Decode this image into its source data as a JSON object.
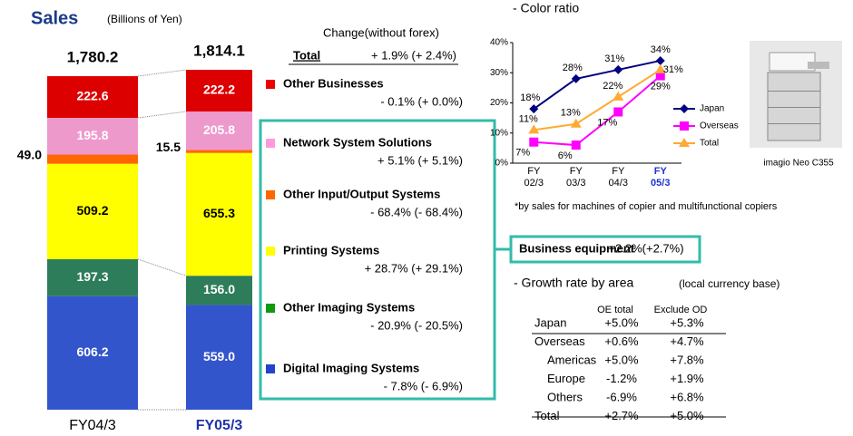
{
  "title": "Sales",
  "subtitle": "(Billions of Yen)",
  "chart_data": [
    {
      "type": "stacked-bar",
      "categories": [
        "FY04/3",
        "FY05/3"
      ],
      "highlight_index": 1,
      "totals": [
        1780.2,
        1814.1
      ],
      "total_labels": [
        "1,780.2",
        "1,814.1"
      ],
      "series": [
        {
          "name": "Digital Imaging Systems",
          "color": "#3355cc",
          "legend_color": "#2244cc",
          "label_color": "#ffffff",
          "values": [
            606.2,
            559.0
          ],
          "value_labels": [
            "606.2",
            "559.0"
          ],
          "change": "- 7.8% (- 6.9%)"
        },
        {
          "name": "Other Imaging Systems",
          "color": "#2e7d5a",
          "legend_color": "#119911",
          "label_color": "#ffffff",
          "values": [
            197.3,
            156.0
          ],
          "value_labels": [
            "197.3",
            "156.0"
          ],
          "change": "- 20.9% (- 20.5%)"
        },
        {
          "name": "Printing Systems",
          "color": "#ffff00",
          "legend_color": "#ffff00",
          "label_color": "#000000",
          "values": [
            509.2,
            655.3
          ],
          "value_labels": [
            "509.2",
            "655.3"
          ],
          "change": "+ 28.7% (+ 29.1%)"
        },
        {
          "name": "Other Input/Output Systems",
          "color": "#ff6600",
          "legend_color": "#ff6600",
          "label_color": "#000000",
          "values": [
            49.0,
            15.5
          ],
          "value_labels": [
            "49.0",
            "15.5"
          ],
          "change": "- 68.4% (- 68.4%)"
        },
        {
          "name": "Network System Solutions",
          "color": "#ee99cc",
          "legend_color": "#ff99dd",
          "label_color": "#ffffff",
          "values": [
            195.8,
            205.8
          ],
          "value_labels": [
            "195.8",
            "205.8"
          ],
          "change": "+ 5.1% (+ 5.1%)"
        },
        {
          "name": "Other Businesses",
          "color": "#dd0000",
          "legend_color": "#ee0000",
          "label_color": "#ffffff",
          "values": [
            222.6,
            222.2
          ],
          "value_labels": [
            "222.6",
            "222.2"
          ],
          "change": "- 0.1% (+ 0.0%)"
        }
      ]
    },
    {
      "type": "line",
      "title": "- Color ratio",
      "categories": [
        [
          "FY",
          "02/3"
        ],
        [
          "FY",
          "03/3"
        ],
        [
          "FY",
          "04/3"
        ],
        [
          "FY",
          "05/3"
        ]
      ],
      "highlight_index": 3,
      "ylim": [
        0,
        40
      ],
      "yticks": [
        {
          "value": 0,
          "label": "0%"
        },
        {
          "value": 10,
          "label": "10%"
        },
        {
          "value": 20,
          "label": "20%"
        },
        {
          "value": 30,
          "label": "30%"
        },
        {
          "value": 40,
          "label": "40%"
        }
      ],
      "series": [
        {
          "name": "Japan",
          "color": "#000080",
          "marker": "diamond",
          "values": [
            18,
            28,
            31,
            34
          ],
          "value_labels": [
            "18%",
            "28%",
            "31%",
            "34%"
          ]
        },
        {
          "name": "Overseas",
          "color": "#ff00ff",
          "marker": "square",
          "values": [
            7,
            6,
            17,
            29
          ],
          "value_labels": [
            "7%",
            "6%",
            "17%",
            "29%"
          ]
        },
        {
          "name": "Total",
          "color": "#ffaa33",
          "marker": "triangle",
          "values": [
            11,
            13,
            22,
            31
          ],
          "value_labels": [
            "11%",
            "13%",
            "22%",
            "31%"
          ]
        }
      ],
      "note": "*by sales for machines of copier and multifunctional copiers"
    }
  ],
  "change": {
    "header": "Change(without forex)",
    "total_label": "Total",
    "total_value": "+ 1.9% (+ 2.4%)"
  },
  "business_equipment": {
    "label": "Business equipment",
    "value": "+2.2%(+2.7%)"
  },
  "image_caption": "imagio Neo C355",
  "growth": {
    "title": "- Growth rate by area",
    "subtitle": "(local currency base)",
    "columns": [
      "OE total",
      "Exclude OD"
    ],
    "rows": [
      [
        "Japan",
        "+5.0%",
        "+5.3%"
      ],
      [
        "Overseas",
        "+0.6%",
        "+4.7%"
      ],
      [
        "Americas",
        "+5.0%",
        "+7.8%"
      ],
      [
        "Europe",
        "-1.2%",
        "+1.9%"
      ],
      [
        "Others",
        "-6.9%",
        "+6.8%"
      ],
      [
        "Total",
        "+2.7%",
        "+5.0%"
      ]
    ]
  }
}
